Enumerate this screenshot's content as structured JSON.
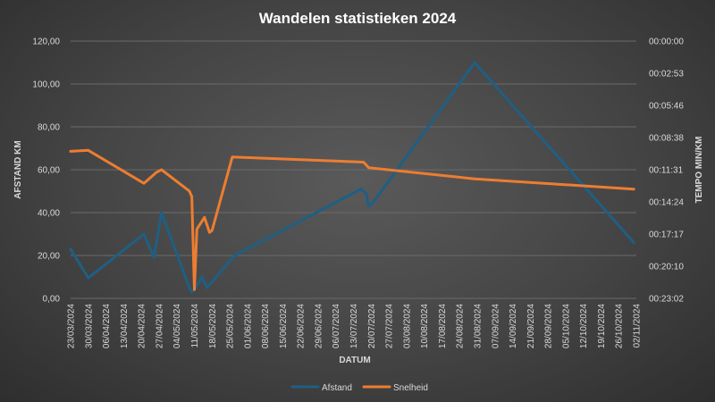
{
  "chart_data": {
    "type": "line",
    "title": "Wandelen statistieken 2024",
    "xlabel": "DATUM",
    "ylabel": "AFSTAND KM",
    "y2label": "TEMPO MIN/KM",
    "ylim": [
      0,
      120
    ],
    "y_ticks": [
      "0,00",
      "20,00",
      "40,00",
      "60,00",
      "80,00",
      "100,00",
      "120,00"
    ],
    "y2lim_seconds": [
      0,
      1382
    ],
    "y2_reversed": true,
    "y2_ticks": [
      "00:00:00",
      "00:02:53",
      "00:05:46",
      "00:08:38",
      "00:11:31",
      "00:14:24",
      "00:17:17",
      "00:20:10",
      "00:23:02"
    ],
    "x_range": [
      "2024-03-23",
      "2024-11-02"
    ],
    "x_ticks": [
      "23/03/2024",
      "30/03/2024",
      "06/04/2024",
      "13/04/2024",
      "20/04/2024",
      "27/04/2024",
      "04/05/2024",
      "11/05/2024",
      "18/05/2024",
      "25/05/2024",
      "01/06/2024",
      "08/06/2024",
      "15/06/2024",
      "22/06/2024",
      "29/06/2024",
      "06/07/2024",
      "13/07/2024",
      "20/07/2024",
      "27/07/2024",
      "03/08/2024",
      "10/08/2024",
      "17/08/2024",
      "24/08/2024",
      "31/08/2024",
      "07/09/2024",
      "14/09/2024",
      "21/09/2024",
      "28/09/2024",
      "05/10/2024",
      "12/10/2024",
      "19/10/2024",
      "26/10/2024",
      "02/11/2024"
    ],
    "grid": true,
    "legend": "bottom",
    "series": [
      {
        "name": "Afstand",
        "axis": "left",
        "color": "#1f5f84",
        "points": [
          [
            "2024-03-23",
            23
          ],
          [
            "2024-03-30",
            9.5
          ],
          [
            "2024-04-21",
            30
          ],
          [
            "2024-04-25",
            19
          ],
          [
            "2024-04-28",
            40
          ],
          [
            "2024-05-09",
            5
          ],
          [
            "2024-05-10",
            3
          ],
          [
            "2024-05-11",
            4
          ],
          [
            "2024-05-14",
            10
          ],
          [
            "2024-05-16",
            5
          ],
          [
            "2024-05-27",
            20
          ],
          [
            "2024-07-16",
            51
          ],
          [
            "2024-07-18",
            49
          ],
          [
            "2024-07-19",
            43
          ],
          [
            "2024-07-21",
            45
          ],
          [
            "2024-08-30",
            110
          ],
          [
            "2024-11-01",
            26
          ]
        ]
      },
      {
        "name": "Snelheid",
        "axis": "right",
        "color": "#ed7d31",
        "points": [
          [
            "2024-03-23",
            592
          ],
          [
            "2024-03-30",
            587
          ],
          [
            "2024-04-21",
            764
          ],
          [
            "2024-04-26",
            705
          ],
          [
            "2024-04-28",
            691
          ],
          [
            "2024-05-09",
            805
          ],
          [
            "2024-05-10",
            835
          ],
          [
            "2024-05-11",
            1335
          ],
          [
            "2024-05-12",
            1010
          ],
          [
            "2024-05-15",
            947
          ],
          [
            "2024-05-17",
            1028
          ],
          [
            "2024-05-18",
            1017
          ],
          [
            "2024-05-26",
            623
          ],
          [
            "2024-07-17",
            650
          ],
          [
            "2024-07-19",
            680
          ],
          [
            "2024-08-30",
            740
          ],
          [
            "2024-11-01",
            795
          ]
        ]
      }
    ]
  }
}
